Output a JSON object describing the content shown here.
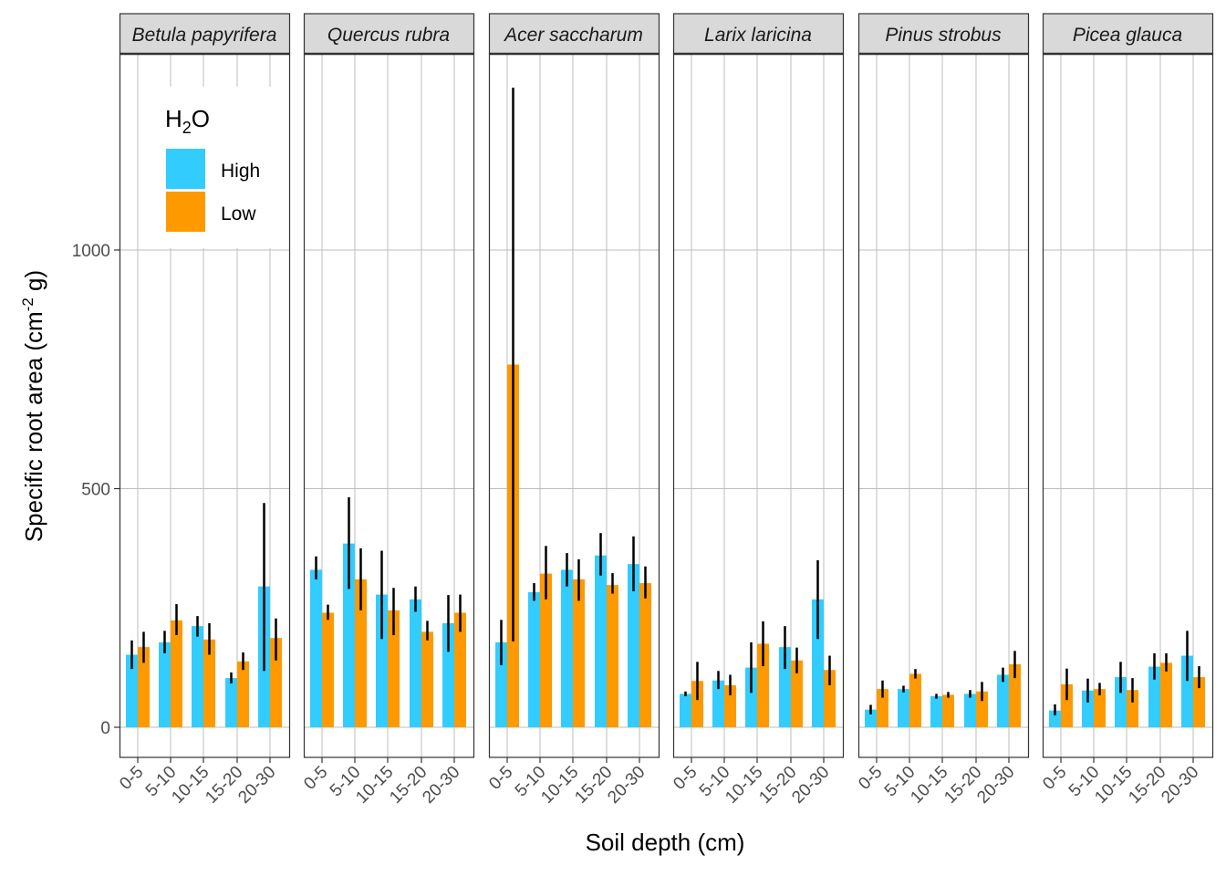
{
  "chart_data": {
    "type": "bar",
    "xlabel": "Soil depth (cm)",
    "ylabel_main": "Specific root area (cm",
    "ylabel_sup": "-2",
    "ylabel_tail": " g)",
    "categories": [
      "0-5",
      "5-10",
      "10-15",
      "15-20",
      "20-30"
    ],
    "ylim": [
      -65,
      1410
    ],
    "yticks": [
      0,
      500,
      1000
    ],
    "grid": true,
    "legend": {
      "title_main": "H",
      "title_sub": "2",
      "title_tail": "O",
      "position": "top-left",
      "items": [
        {
          "label": "High",
          "color": "#33CCFF"
        },
        {
          "label": "Low",
          "color": "#FF9900"
        }
      ]
    },
    "panels": [
      {
        "species": "Betula papyrifera",
        "series": [
          {
            "name": "High",
            "values": [
              152,
              178,
              212,
              103,
              295
            ],
            "lower": [
              122,
              155,
              190,
              92,
              118
            ],
            "upper": [
              182,
              202,
              233,
              115,
              470
            ]
          },
          {
            "name": "Low",
            "values": [
              168,
              224,
              184,
              138,
              187
            ],
            "lower": [
              135,
              193,
              152,
              120,
              140
            ],
            "upper": [
              200,
              258,
              218,
              157,
              228
            ]
          }
        ]
      },
      {
        "species": "Quercus rubra",
        "series": [
          {
            "name": "High",
            "values": [
              330,
              385,
              278,
              268,
              218
            ],
            "lower": [
              310,
              290,
              185,
              242,
              158
            ],
            "upper": [
              358,
              482,
              370,
              295,
              277
            ]
          },
          {
            "name": "Low",
            "values": [
              240,
              310,
              245,
              200,
              240
            ],
            "lower": [
              225,
              245,
              193,
              182,
              200
            ],
            "upper": [
              257,
              375,
              292,
              223,
              278
            ]
          }
        ]
      },
      {
        "species": "Acer saccharum",
        "series": [
          {
            "name": "High",
            "values": [
              178,
              283,
              330,
              360,
              342
            ],
            "lower": [
              130,
              265,
              295,
              318,
              285
            ],
            "upper": [
              225,
              302,
              365,
              407,
              400
            ]
          },
          {
            "name": "Low",
            "values": [
              760,
              322,
              310,
              298,
              302
            ],
            "lower": [
              180,
              268,
              265,
              280,
              270
            ],
            "upper": [
              1340,
              380,
              352,
              323,
              337
            ]
          }
        ]
      },
      {
        "species": "Larix laricina",
        "series": [
          {
            "name": "High",
            "values": [
              70,
              98,
              125,
              168,
              268
            ],
            "lower": [
              65,
              80,
              72,
              122,
              185
            ],
            "upper": [
              75,
              118,
              178,
              212,
              350
            ]
          },
          {
            "name": "Low",
            "values": [
              97,
              88,
              175,
              140,
              120
            ],
            "lower": [
              57,
              67,
              128,
              113,
              88
            ],
            "upper": [
              137,
              110,
              222,
              167,
              150
            ]
          }
        ]
      },
      {
        "species": "Pinus strobus",
        "series": [
          {
            "name": "High",
            "values": [
              37,
              80,
              65,
              70,
              110
            ],
            "lower": [
              27,
              73,
              60,
              62,
              95
            ],
            "upper": [
              47,
              87,
              70,
              78,
              125
            ]
          },
          {
            "name": "Low",
            "values": [
              80,
              112,
              68,
              75,
              132
            ],
            "lower": [
              62,
              102,
              62,
              55,
              103
            ],
            "upper": [
              98,
              122,
              74,
              95,
              160
            ]
          }
        ]
      },
      {
        "species": "Picea glauca",
        "series": [
          {
            "name": "High",
            "values": [
              35,
              77,
              105,
              127,
              150
            ],
            "lower": [
              25,
              52,
              72,
              100,
              97
            ],
            "upper": [
              48,
              102,
              137,
              155,
              202
            ]
          },
          {
            "name": "Low",
            "values": [
              90,
              80,
              78,
              135,
              105
            ],
            "lower": [
              57,
              67,
              52,
              117,
              82
            ],
            "upper": [
              123,
              93,
              103,
              155,
              128
            ]
          }
        ]
      }
    ]
  }
}
